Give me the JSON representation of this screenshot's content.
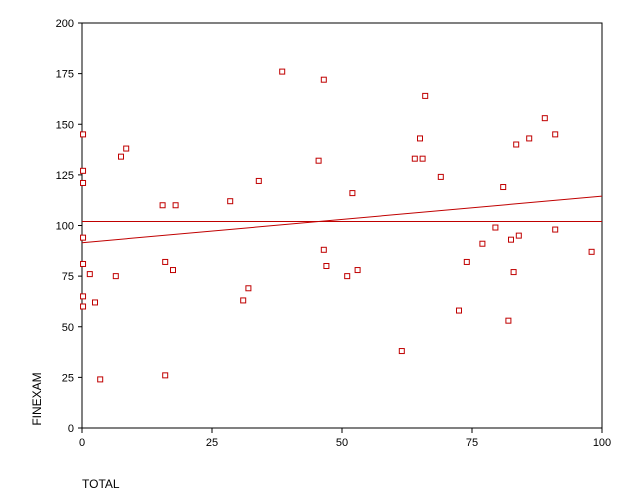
{
  "chart_data": {
    "type": "scatter",
    "title": "",
    "xlabel": "TOTAL",
    "ylabel": "FINEXAM",
    "xlim": [
      0,
      100
    ],
    "ylim": [
      0,
      200
    ],
    "x_ticks": [
      0,
      25,
      50,
      75,
      100
    ],
    "y_ticks": [
      0,
      25,
      50,
      75,
      100,
      125,
      150,
      175,
      200
    ],
    "x_tick_labels": [
      "0",
      "25",
      "50",
      "75",
      "100"
    ],
    "y_tick_labels": [
      "0",
      "25",
      "50",
      "75",
      "100",
      "125",
      "150",
      "175",
      "200"
    ],
    "grid": false,
    "legend": "none",
    "marker": "open-square",
    "color": "#c00000",
    "series": [
      {
        "points": [
          [
            0.2,
            145
          ],
          [
            0.2,
            127
          ],
          [
            0.2,
            121
          ],
          [
            0.2,
            94
          ],
          [
            0.2,
            81
          ],
          [
            0.2,
            65
          ],
          [
            0.2,
            60
          ],
          [
            1.5,
            76
          ],
          [
            2.5,
            62
          ],
          [
            3.5,
            24
          ],
          [
            6.5,
            75
          ],
          [
            7.5,
            134
          ],
          [
            8.5,
            138
          ],
          [
            15.5,
            110
          ],
          [
            16,
            82
          ],
          [
            16,
            26
          ],
          [
            17.5,
            78
          ],
          [
            18,
            110
          ],
          [
            28.5,
            112
          ],
          [
            31,
            63
          ],
          [
            32,
            69
          ],
          [
            34,
            122
          ],
          [
            38.5,
            176
          ],
          [
            45.5,
            132
          ],
          [
            46.5,
            88
          ],
          [
            46.5,
            172
          ],
          [
            47,
            80
          ],
          [
            51,
            75
          ],
          [
            52,
            116
          ],
          [
            53,
            78
          ],
          [
            61.5,
            38
          ],
          [
            64,
            133
          ],
          [
            65,
            143
          ],
          [
            65.5,
            133
          ],
          [
            66,
            164
          ],
          [
            69,
            124
          ],
          [
            72.5,
            58
          ],
          [
            74,
            82
          ],
          [
            77,
            91
          ],
          [
            79.5,
            99
          ],
          [
            81,
            119
          ],
          [
            82,
            53
          ],
          [
            82.5,
            93
          ],
          [
            83,
            77
          ],
          [
            83.5,
            140
          ],
          [
            84,
            95
          ],
          [
            86,
            143
          ],
          [
            89,
            153
          ],
          [
            91,
            98
          ],
          [
            91,
            145
          ],
          [
            98,
            87
          ]
        ]
      }
    ],
    "lines": [
      {
        "kind": "horizontal",
        "y": 102
      },
      {
        "kind": "fit",
        "x": [
          0,
          100
        ],
        "y": [
          91.5,
          114.5
        ]
      }
    ]
  }
}
